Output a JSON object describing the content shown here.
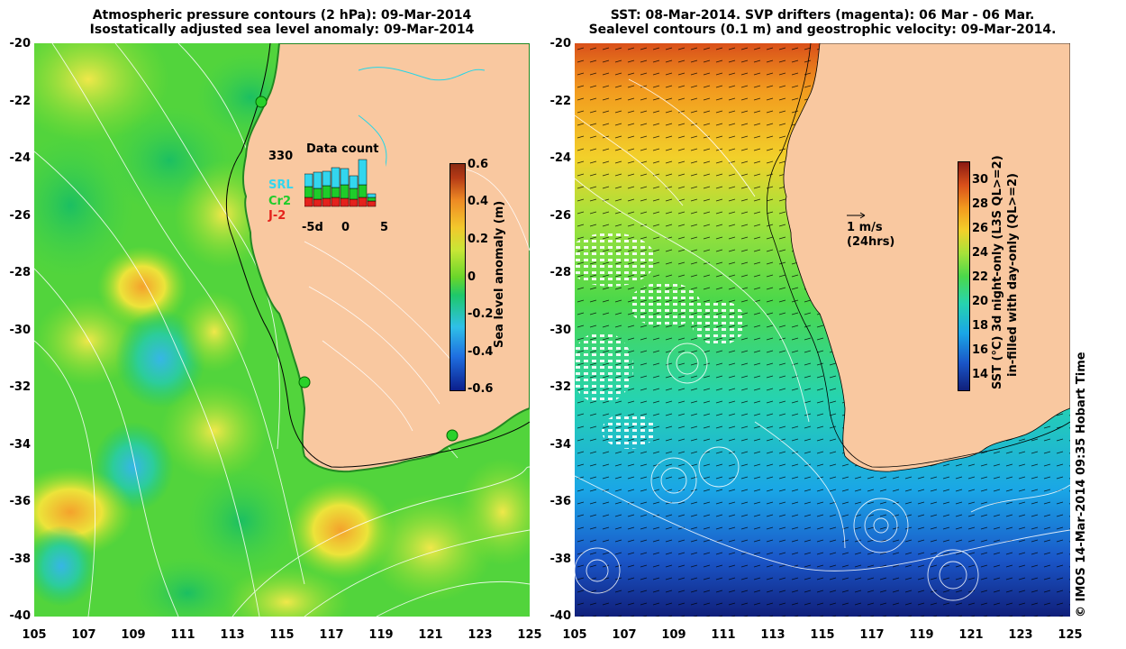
{
  "left_panel": {
    "title_line1": "Atmospheric pressure contours (2 hPa): 09-Mar-2014",
    "title_line2": "Isostatically adjusted sea level anomaly: 09-Mar-2014",
    "colorbar": {
      "label": "Sea level anomaly (m)",
      "ticks": [
        "0.6",
        "0.4",
        "0.2",
        "0",
        "-0.2",
        "-0.4",
        "-0.6"
      ],
      "colors": [
        "#0b1e8c",
        "#1f6fe0",
        "#2fc0e8",
        "#1ec86a",
        "#8fe02a",
        "#e6e63a",
        "#f7b22c",
        "#e3601e",
        "#8c2a12"
      ]
    },
    "inset": {
      "title": "Data count",
      "max_label": "330",
      "legend": [
        "SRL",
        "Cr2",
        "J-2"
      ],
      "legend_colors": [
        "#33d6ee",
        "#1ecc2a",
        "#e5221c"
      ],
      "xticks": [
        "-5d",
        "0",
        "5"
      ]
    }
  },
  "right_panel": {
    "title_line1": "SST: 08-Mar-2014. SVP drifters (magenta): 06 Mar - 06 Mar.",
    "title_line2": "Sealevel contours (0.1 m) and geostrophic velocity: 09-Mar-2014.",
    "colorbar": {
      "label_line1": "SST (°C) 3d night-only (L3S QL>=2)",
      "label_line2": "in-filled with day-only (QL>=2)",
      "ticks": [
        "30",
        "28",
        "26",
        "24",
        "22",
        "20",
        "18",
        "16",
        "14"
      ],
      "colors": [
        "#101f7a",
        "#1a56c8",
        "#1aa6e6",
        "#26d3b0",
        "#4bd84a",
        "#a6e23a",
        "#f2d02a",
        "#f29a1e",
        "#d9501a",
        "#8a1a12"
      ]
    },
    "velocity_scale": "1 m/s",
    "velocity_period": "(24hrs)"
  },
  "axes": {
    "lat_ticks": [
      "-20",
      "-22",
      "-24",
      "-26",
      "-28",
      "-30",
      "-32",
      "-34",
      "-36",
      "-38",
      "-40"
    ],
    "lon_ticks": [
      "105",
      "107",
      "109",
      "111",
      "113",
      "115",
      "117",
      "119",
      "121",
      "123",
      "125"
    ]
  },
  "colors": {
    "land": "#f9c8a0",
    "contour": "#ffffff",
    "coast_line": "#000000"
  },
  "footer": "© IMOS 14-Mar-2014 09:35 Hobart Time"
}
